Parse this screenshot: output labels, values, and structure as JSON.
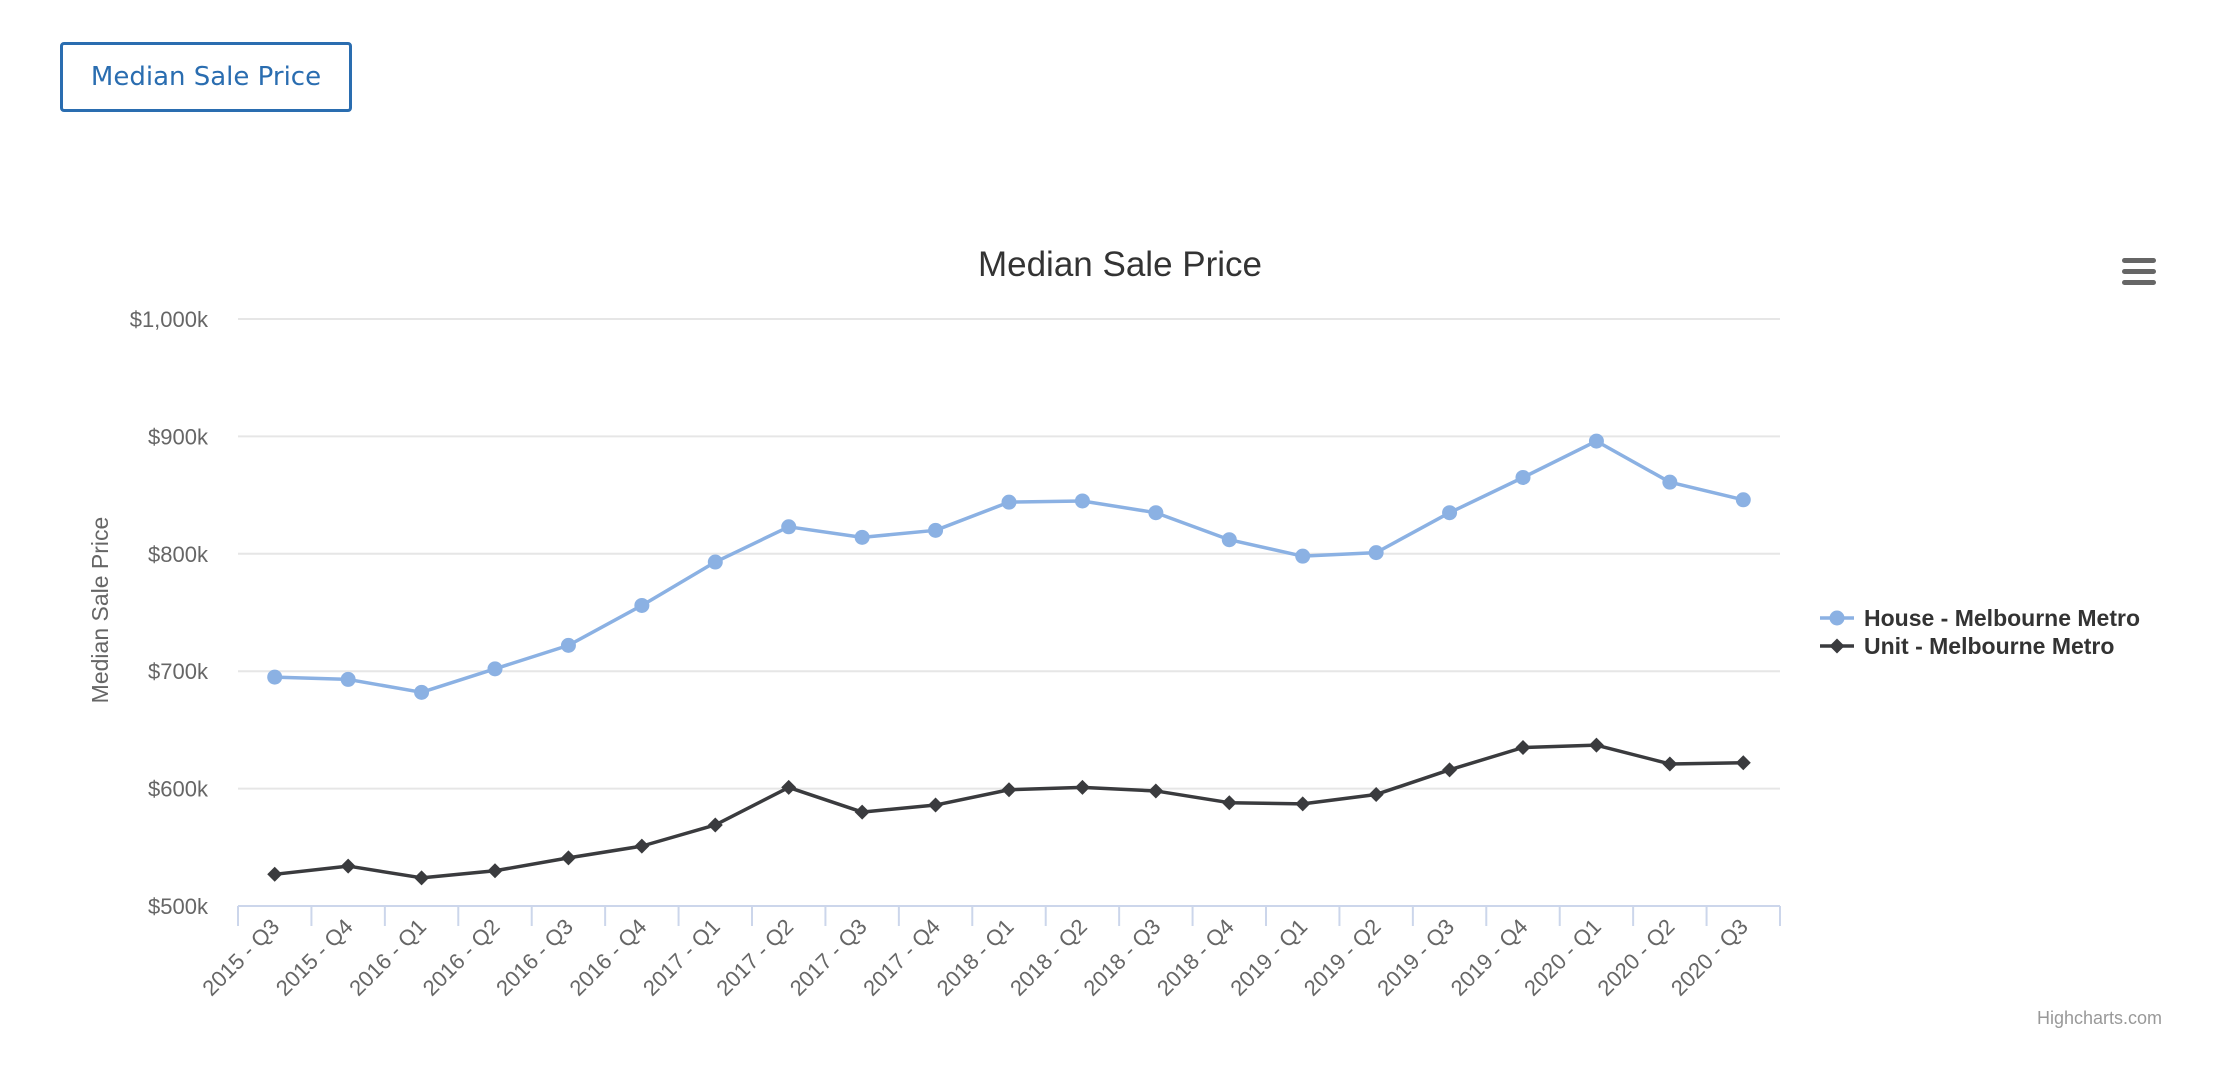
{
  "toolbar": {
    "tab_label": "Median Sale Price"
  },
  "chart_data": {
    "type": "line",
    "title": "Median Sale Price",
    "xlabel": "",
    "ylabel": "Median Sale Price",
    "ylim": [
      500,
      1000
    ],
    "yticks": [
      500,
      600,
      700,
      800,
      900,
      1000
    ],
    "ytick_labels": [
      "$500k",
      "$600k",
      "$700k",
      "$800k",
      "$900k",
      "$1,000k"
    ],
    "grid": true,
    "legend_position": "right",
    "categories": [
      "2015 - Q3",
      "2015 - Q4",
      "2016 - Q1",
      "2016 - Q2",
      "2016 - Q3",
      "2016 - Q4",
      "2017 - Q1",
      "2017 - Q2",
      "2017 - Q3",
      "2017 - Q4",
      "2018 - Q1",
      "2018 - Q2",
      "2018 - Q3",
      "2018 - Q4",
      "2019 - Q1",
      "2019 - Q2",
      "2019 - Q3",
      "2019 - Q4",
      "2020 - Q1",
      "2020 - Q2",
      "2020 - Q3"
    ],
    "series": [
      {
        "name": "House - Melbourne Metro",
        "color": "#8bb1e3",
        "marker": "circle",
        "values": [
          695,
          693,
          682,
          702,
          722,
          756,
          793,
          823,
          814,
          820,
          844,
          845,
          835,
          812,
          798,
          801,
          835,
          865,
          896,
          861,
          846
        ]
      },
      {
        "name": "Unit - Melbourne Metro",
        "color": "#3a3b3e",
        "marker": "diamond",
        "values": [
          527,
          534,
          524,
          530,
          541,
          551,
          569,
          601,
          580,
          586,
          599,
          601,
          598,
          588,
          587,
          595,
          616,
          635,
          637,
          621,
          622
        ]
      }
    ],
    "credits": "Highcharts.com"
  },
  "icons": {
    "menu": "hamburger-menu-icon"
  }
}
